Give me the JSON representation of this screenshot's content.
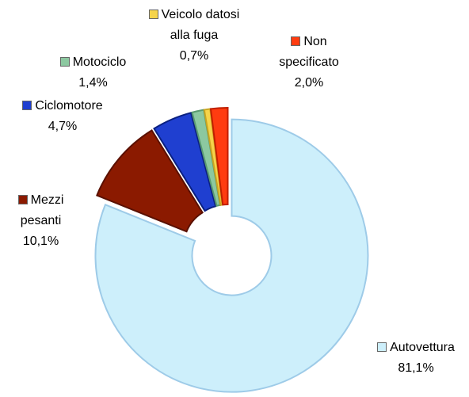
{
  "chart_data": {
    "type": "doughnut",
    "categories": [
      "Autovettura",
      "Mezzi pesanti",
      "Ciclomotore",
      "Motociclo",
      "Veicolo datosi alla fuga",
      "Non specificato"
    ],
    "values": [
      81.1,
      10.1,
      4.7,
      1.4,
      0.7,
      2.0
    ],
    "value_labels": [
      "81,1%",
      "10,1%",
      "4,7%",
      "1,4%",
      "0,7%",
      "2,0%"
    ],
    "colors": [
      "#cdeffb",
      "#8b1a00",
      "#1f3fd0",
      "#8cc8a0",
      "#f6d44a",
      "#ff3c10"
    ]
  }
}
